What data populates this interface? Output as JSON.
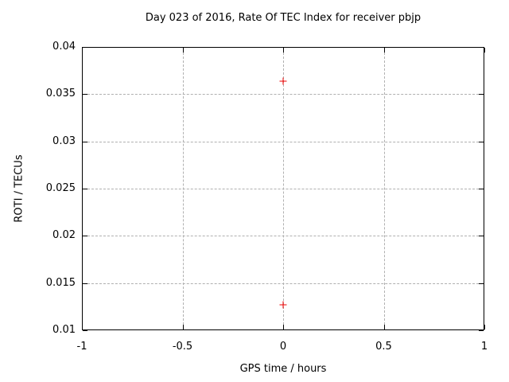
{
  "chart_data": {
    "type": "scatter",
    "title": "Day 023 of 2016, Rate Of TEC Index for receiver pbjp",
    "xlabel": "GPS time / hours",
    "ylabel": "ROTI / TECUs",
    "xlim": [
      -1,
      1
    ],
    "ylim": [
      0.01,
      0.04
    ],
    "xticks": [
      -1,
      -0.5,
      0,
      0.5,
      1
    ],
    "yticks": [
      0.01,
      0.015,
      0.02,
      0.025,
      0.03,
      0.035,
      0.04
    ],
    "grid": true,
    "legend": "none",
    "series": [
      {
        "name": "ROTI",
        "marker": "plus",
        "color": "#ee0000",
        "points": [
          {
            "x": 0,
            "y": 0.0364
          },
          {
            "x": 0,
            "y": 0.0127
          }
        ]
      }
    ],
    "colors": {
      "background": "#ffffff",
      "border": "#000000",
      "grid": "#b0b0b0",
      "text": "#000000",
      "marker": "#ee0000"
    }
  }
}
